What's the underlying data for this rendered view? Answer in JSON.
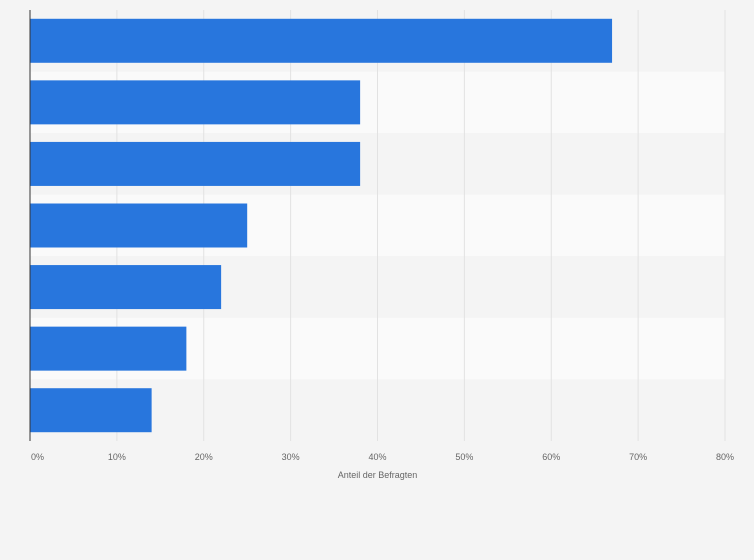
{
  "chart_data": {
    "type": "bar",
    "orientation": "horizontal",
    "categories": [
      "",
      "",
      "",
      "",
      "",
      "",
      ""
    ],
    "values": [
      67,
      38,
      38,
      25,
      22,
      18,
      14
    ],
    "xlabel": "Anteil der Befragten",
    "xlim": [
      0,
      80
    ],
    "ticks": [
      0,
      10,
      20,
      30,
      40,
      50,
      60,
      70,
      80
    ],
    "tick_labels": [
      "0%",
      "10%",
      "20%",
      "30%",
      "40%",
      "50%",
      "60%",
      "70%",
      "80%"
    ],
    "grid": true,
    "legend": "none"
  },
  "colors": {
    "bar": "#2876dd",
    "background": "#f4f4f4",
    "band_light": "#fafafa",
    "band_dark": "#f4f4f4",
    "grid": "#e2e2e2",
    "axis": "#333333",
    "text": "#666666"
  }
}
